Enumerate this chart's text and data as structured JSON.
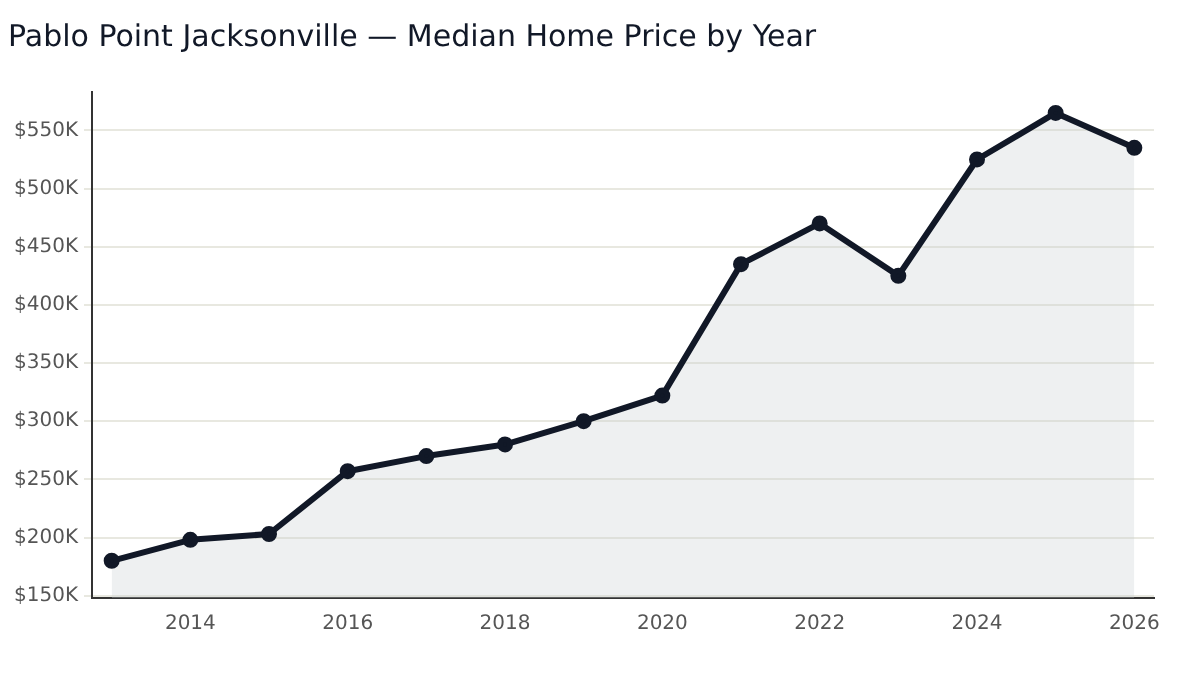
{
  "chart_data": {
    "type": "area",
    "title": "Pablo Point Jacksonville — Median Home Price by Year",
    "x": [
      2013,
      2014,
      2015,
      2016,
      2017,
      2018,
      2019,
      2020,
      2021,
      2022,
      2023,
      2024,
      2025,
      2026
    ],
    "series": [
      {
        "color": "#111827",
        "values": [
          180,
          198,
          203,
          257,
          270,
          280,
          300,
          322,
          435,
          470,
          425,
          525,
          565,
          535
        ]
      }
    ],
    "xlim": [
      2012.75,
      2026.25
    ],
    "xticks": [
      2014,
      2016,
      2018,
      2020,
      2022,
      2024,
      2026
    ],
    "ylim": [
      148,
      583
    ],
    "yticks": [
      {
        "value": 150,
        "label": "$150K"
      },
      {
        "value": 200,
        "label": "$200K"
      },
      {
        "value": 250,
        "label": "$250K"
      },
      {
        "value": 300,
        "label": "$300K"
      },
      {
        "value": 350,
        "label": "$350K"
      },
      {
        "value": 400,
        "label": "$400K"
      },
      {
        "value": 450,
        "label": "$450K"
      },
      {
        "value": 500,
        "label": "$500K"
      },
      {
        "value": 550,
        "label": "$550K"
      }
    ],
    "grid": "y",
    "marker": "circle",
    "line_style": "solid",
    "legend": false
  }
}
